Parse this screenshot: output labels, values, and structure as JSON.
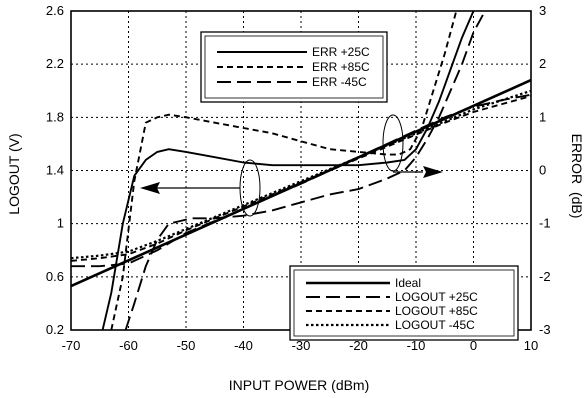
{
  "chart_data": {
    "type": "line",
    "xlabel": "INPUT POWER (dBm)",
    "ylabel": "LOGOUT (V)",
    "y2label": "ERROR  (dB)",
    "xlim": [
      -70,
      10
    ],
    "ylim": [
      0.2,
      2.6
    ],
    "y2lim": [
      -3,
      3
    ],
    "xticks": [
      -70,
      -60,
      -50,
      -40,
      -30,
      -20,
      -10,
      0,
      10
    ],
    "yticks": [
      "0.2",
      "0.6",
      "1",
      "1.4",
      "1.8",
      "2.2",
      "2.6"
    ],
    "y2ticks": [
      "-3",
      "-2",
      "-1",
      "0",
      "1",
      "2",
      "3"
    ],
    "grid": true,
    "legend_top": {
      "placement": "top-center",
      "entries": [
        {
          "label": "ERR +25C",
          "series": "err_25"
        },
        {
          "label": "ERR +85C",
          "series": "err_85"
        },
        {
          "label": "ERR  -45C",
          "series": "err_m45"
        }
      ]
    },
    "legend_bottom": {
      "placement": "bottom-right",
      "entries": [
        {
          "label": "Ideal",
          "series": "ideal"
        },
        {
          "label": "LOGOUT +25C",
          "series": "logout_25"
        },
        {
          "label": "LOGOUT +85C",
          "series": "logout_85"
        },
        {
          "label": "LOGOUT  -45C",
          "series": "logout_m45"
        }
      ]
    },
    "series": [
      {
        "id": "ideal",
        "name": "Ideal",
        "axis": "left",
        "style": "solid-thick",
        "x": [
          -70,
          10
        ],
        "y": [
          0.53,
          2.08
        ]
      },
      {
        "id": "logout_25",
        "name": "LOGOUT +25C",
        "axis": "left",
        "style": "long-dash",
        "x": [
          -70,
          -65,
          -60,
          -55,
          -50,
          -45,
          -40,
          -35,
          -30,
          -25,
          -20,
          -15,
          -10,
          -5,
          0,
          5,
          10
        ],
        "y": [
          0.68,
          0.68,
          0.7,
          0.8,
          0.93,
          1.02,
          1.11,
          1.21,
          1.3,
          1.4,
          1.5,
          1.6,
          1.7,
          1.8,
          1.88,
          1.93,
          1.97
        ]
      },
      {
        "id": "logout_85",
        "name": "LOGOUT +85C",
        "axis": "left",
        "style": "short-dash",
        "x": [
          -70,
          -65,
          -60,
          -55,
          -50,
          -45,
          -40,
          -35,
          -30,
          -25,
          -20,
          -15,
          -10,
          -5,
          0,
          5,
          10
        ],
        "y": [
          0.72,
          0.74,
          0.77,
          0.85,
          0.95,
          1.04,
          1.13,
          1.22,
          1.31,
          1.4,
          1.49,
          1.58,
          1.67,
          1.76,
          1.84,
          1.9,
          1.96
        ]
      },
      {
        "id": "logout_m45",
        "name": "LOGOUT  -45C",
        "axis": "left",
        "style": "dotted",
        "x": [
          -70,
          -65,
          -60,
          -55,
          -50,
          -45,
          -40,
          -35,
          -30,
          -25,
          -20,
          -15,
          -10,
          -5,
          0,
          5,
          10
        ],
        "y": [
          0.74,
          0.76,
          0.79,
          0.87,
          0.96,
          1.05,
          1.14,
          1.23,
          1.32,
          1.41,
          1.5,
          1.59,
          1.68,
          1.77,
          1.86,
          1.93,
          2.0
        ]
      },
      {
        "id": "err_25",
        "name": "ERR +25C",
        "axis": "right",
        "style": "solid",
        "x": [
          -64.5,
          -63,
          -61,
          -59,
          -57,
          -55,
          -53,
          -50,
          -45,
          -40,
          -35,
          -30,
          -25,
          -20,
          -15,
          -12,
          -10,
          -8,
          -6,
          -4,
          -2,
          0
        ],
        "y": [
          -3,
          -2.3,
          -1.0,
          -0.1,
          0.2,
          0.35,
          0.4,
          0.35,
          0.25,
          0.15,
          0.1,
          0.1,
          0.1,
          0.1,
          0.15,
          0.2,
          0.4,
          0.8,
          1.3,
          1.9,
          2.5,
          3.0
        ]
      },
      {
        "id": "err_85",
        "name": "ERR +85C",
        "axis": "right",
        "style": "short-dash",
        "x": [
          -63,
          -61,
          -59,
          -57,
          -55,
          -53,
          -50,
          -45,
          -40,
          -35,
          -30,
          -25,
          -20,
          -15,
          -13,
          -11,
          -9,
          -7,
          -5,
          -3
        ],
        "y": [
          -3,
          -2.0,
          -0.2,
          0.9,
          1.0,
          1.05,
          1.0,
          0.9,
          0.8,
          0.7,
          0.55,
          0.4,
          0.35,
          0.3,
          0.3,
          0.4,
          0.8,
          1.5,
          2.2,
          3.0
        ]
      },
      {
        "id": "err_m45",
        "name": "ERR  -45C",
        "axis": "right",
        "style": "long-dash",
        "x": [
          -60.5,
          -59,
          -57,
          -55,
          -53,
          -51,
          -49,
          -45,
          -40,
          -35,
          -30,
          -25,
          -20,
          -15,
          -12,
          -10,
          -8,
          -6,
          -4,
          -2,
          0,
          2
        ],
        "y": [
          -3,
          -2.5,
          -1.8,
          -1.3,
          -1.0,
          -0.95,
          -0.9,
          -0.9,
          -0.85,
          -0.75,
          -0.6,
          -0.45,
          -0.35,
          -0.15,
          0.0,
          0.25,
          0.6,
          1.0,
          1.5,
          2.0,
          2.6,
          3.0
        ]
      }
    ]
  }
}
